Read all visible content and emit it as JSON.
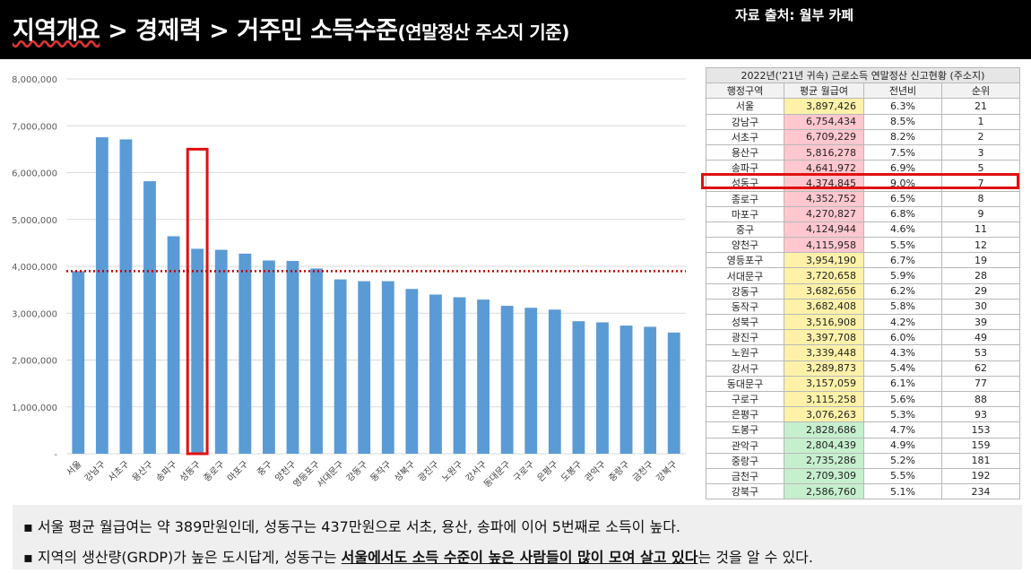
{
  "header": {
    "title_part1": "지역개요",
    "title_part2": " > 경제력 > 거주민 소득수준",
    "title_sub": "(연말정산 주소지 기준)",
    "source": "자료 출처: 월부 카페"
  },
  "chart_data": {
    "type": "bar",
    "categories": [
      "서울",
      "강남구",
      "서초구",
      "용산구",
      "송파구",
      "성동구",
      "종로구",
      "마포구",
      "중구",
      "양천구",
      "영등포구",
      "서대문구",
      "강동구",
      "동작구",
      "성북구",
      "광진구",
      "노원구",
      "강서구",
      "동대문구",
      "구로구",
      "은평구",
      "도봉구",
      "관악구",
      "중랑구",
      "금천구",
      "강북구"
    ],
    "values": [
      3897426,
      6754434,
      6709229,
      5816278,
      4641972,
      4374845,
      4352752,
      4270827,
      4124944,
      4115958,
      3954190,
      3720658,
      3682656,
      3682408,
      3516908,
      3397708,
      3339448,
      3289873,
      3157059,
      3115258,
      3076263,
      2828686,
      2804439,
      2735286,
      2709309,
      2586760
    ],
    "ylim": [
      0,
      8000000
    ],
    "yticks": [
      "-",
      "1,000,000",
      "2,000,000",
      "3,000,000",
      "4,000,000",
      "5,000,000",
      "6,000,000",
      "7,000,000",
      "8,000,000"
    ],
    "ytick_values": [
      0,
      1000000,
      2000000,
      3000000,
      4000000,
      5000000,
      6000000,
      7000000,
      8000000
    ],
    "reference_line": 3897426,
    "highlight_category": "성동구",
    "bar_color": "#5b9bd5",
    "reference_color": "#c00000",
    "highlight_color": "#e01010",
    "grid": true
  },
  "table": {
    "caption": "2022년('21년 귀속) 근로소득 연말정산 신고현황 (주소지)",
    "headers": [
      "행정구역",
      "평균 월급여",
      "전년비",
      "순위"
    ],
    "rows": [
      [
        "서울",
        "3,897,426",
        "6.3%",
        "21"
      ],
      [
        "강남구",
        "6,754,434",
        "8.5%",
        "1"
      ],
      [
        "서초구",
        "6,709,229",
        "8.2%",
        "2"
      ],
      [
        "용산구",
        "5,816,278",
        "7.5%",
        "3"
      ],
      [
        "송파구",
        "4,641,972",
        "6.9%",
        "5"
      ],
      [
        "성동구",
        "4,374,845",
        "9.0%",
        "7"
      ],
      [
        "종로구",
        "4,352,752",
        "6.5%",
        "8"
      ],
      [
        "마포구",
        "4,270,827",
        "6.8%",
        "9"
      ],
      [
        "중구",
        "4,124,944",
        "4.6%",
        "11"
      ],
      [
        "양천구",
        "4,115,958",
        "5.5%",
        "12"
      ],
      [
        "영등포구",
        "3,954,190",
        "6.7%",
        "19"
      ],
      [
        "서대문구",
        "3,720,658",
        "5.9%",
        "28"
      ],
      [
        "강동구",
        "3,682,656",
        "6.2%",
        "29"
      ],
      [
        "동작구",
        "3,682,408",
        "5.8%",
        "30"
      ],
      [
        "성북구",
        "3,516,908",
        "4.2%",
        "39"
      ],
      [
        "광진구",
        "3,397,708",
        "6.0%",
        "49"
      ],
      [
        "노원구",
        "3,339,448",
        "4.3%",
        "53"
      ],
      [
        "강서구",
        "3,289,873",
        "5.4%",
        "62"
      ],
      [
        "동대문구",
        "3,157,059",
        "6.1%",
        "77"
      ],
      [
        "구로구",
        "3,115,258",
        "5.6%",
        "88"
      ],
      [
        "은평구",
        "3,076,263",
        "5.3%",
        "93"
      ],
      [
        "도봉구",
        "2,828,686",
        "4.7%",
        "153"
      ],
      [
        "관악구",
        "2,804,439",
        "4.9%",
        "159"
      ],
      [
        "중랑구",
        "2,735,286",
        "5.2%",
        "181"
      ],
      [
        "금천구",
        "2,709,309",
        "5.5%",
        "192"
      ],
      [
        "강북구",
        "2,586,760",
        "5.1%",
        "234"
      ]
    ],
    "value_colors": [
      "#fff2a8",
      "#ffc7ce",
      "#ffc7ce",
      "#ffc7ce",
      "#ffc7ce",
      "#ffc7ce",
      "#ffc7ce",
      "#ffc7ce",
      "#ffc7ce",
      "#ffc7ce",
      "#fff2a8",
      "#fff2a8",
      "#fff2a8",
      "#fff2a8",
      "#fff2a8",
      "#fff2a8",
      "#fff2a8",
      "#fff2a8",
      "#fff2a8",
      "#fff2a8",
      "#fff2a8",
      "#c6efce",
      "#c6efce",
      "#c6efce",
      "#c6efce",
      "#c6efce"
    ]
  },
  "notes": {
    "note1": "▪ 서울 평균 월급여는 약 389만원인데, 성동구는 437만원으로 서초, 용산, 송파에 이어 5번째로 소득이 높다.",
    "note2_before": "▪ 지역의 생산량(GRDP)가 높은 도시답게, 성동구는 ",
    "note2_emph": "서울에서도 소득 수준이 높은 사람들이 많이 모여 살고 있다",
    "note2_after": "는 것을 알 수 있다."
  }
}
